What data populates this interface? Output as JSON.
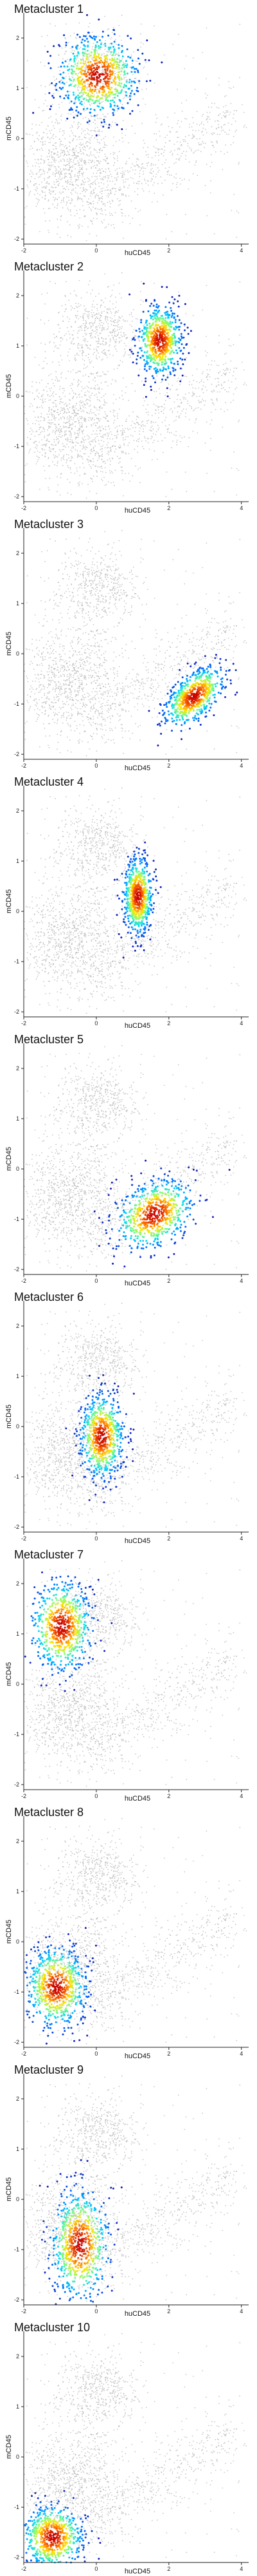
{
  "figure": {
    "panel_count": 10
  },
  "chart_data": [
    {
      "type": "scatter",
      "title": "Metacluster 1",
      "xlabel": "huCD45",
      "ylabel": "mCD45",
      "xlim": [
        -2,
        4.2
      ],
      "ylim": [
        -2.1,
        2.5
      ],
      "xticks": [
        -2,
        0,
        2,
        4
      ],
      "yticks": [
        -2,
        -1,
        0,
        1,
        2
      ],
      "grid": false,
      "legend": "none",
      "background_color": "#b5b5b5",
      "highlight_colormap": [
        "#1a1ab0",
        "#0070ff",
        "#00d4ff",
        "#7cff79",
        "#ffe600",
        "#ff7000",
        "#c80000"
      ],
      "highlight_region": {
        "center_x": 0.05,
        "center_y": 1.25,
        "spread_x": 0.55,
        "spread_y": 0.4,
        "rotation_deg": 0
      }
    },
    {
      "type": "scatter",
      "title": "Metacluster 2",
      "xlabel": "huCD45",
      "ylabel": "mCD45",
      "xlim": [
        -2,
        4.2
      ],
      "ylim": [
        -2.1,
        2.5
      ],
      "xticks": [
        -2,
        0,
        2,
        4
      ],
      "yticks": [
        -2,
        -1,
        0,
        1,
        2
      ],
      "grid": false,
      "legend": "none",
      "background_color": "#b5b5b5",
      "highlight_colormap": [
        "#1a1ab0",
        "#0070ff",
        "#00d4ff",
        "#7cff79",
        "#ffe600",
        "#ff7000",
        "#c80000"
      ],
      "highlight_region": {
        "center_x": 1.75,
        "center_y": 1.1,
        "spread_x": 0.3,
        "spread_y": 0.35,
        "rotation_deg": 0
      }
    },
    {
      "type": "scatter",
      "title": "Metacluster 3",
      "xlabel": "huCD45",
      "ylabel": "mCD45",
      "xlim": [
        -2,
        4.2
      ],
      "ylim": [
        -2.1,
        2.5
      ],
      "xticks": [
        -2,
        0,
        2,
        4
      ],
      "yticks": [
        -2,
        -1,
        0,
        1,
        2
      ],
      "grid": false,
      "legend": "none",
      "background_color": "#b5b5b5",
      "highlight_colormap": [
        "#1a1ab0",
        "#0070ff",
        "#00d4ff",
        "#7cff79",
        "#ffe600",
        "#ff7000",
        "#c80000"
      ],
      "highlight_region": {
        "center_x": 2.7,
        "center_y": -0.85,
        "spread_x": 0.45,
        "spread_y": 0.22,
        "rotation_deg": 30
      }
    },
    {
      "type": "scatter",
      "title": "Metacluster 4",
      "xlabel": "huCD45",
      "ylabel": "mCD45",
      "xlim": [
        -2,
        4.2
      ],
      "ylim": [
        -2.1,
        2.5
      ],
      "xticks": [
        -2,
        0,
        2,
        4
      ],
      "yticks": [
        -2,
        -1,
        0,
        1,
        2
      ],
      "grid": false,
      "legend": "none",
      "background_color": "#b5b5b5",
      "highlight_colormap": [
        "#1a1ab0",
        "#0070ff",
        "#00d4ff",
        "#7cff79",
        "#ffe600",
        "#ff7000",
        "#c80000"
      ],
      "highlight_region": {
        "center_x": 1.15,
        "center_y": 0.3,
        "spread_x": 0.2,
        "spread_y": 0.38,
        "rotation_deg": 0
      }
    },
    {
      "type": "scatter",
      "title": "Metacluster 5",
      "xlabel": "huCD45",
      "ylabel": "mCD45",
      "xlim": [
        -2,
        4.2
      ],
      "ylim": [
        -2.1,
        2.5
      ],
      "xticks": [
        -2,
        0,
        2,
        4
      ],
      "yticks": [
        -2,
        -1,
        0,
        1,
        2
      ],
      "grid": false,
      "legend": "none",
      "background_color": "#b5b5b5",
      "highlight_colormap": [
        "#1a1ab0",
        "#0070ff",
        "#00d4ff",
        "#7cff79",
        "#ffe600",
        "#ff7000",
        "#c80000"
      ],
      "highlight_region": {
        "center_x": 1.6,
        "center_y": -0.9,
        "spread_x": 0.55,
        "spread_y": 0.32,
        "rotation_deg": 18
      }
    },
    {
      "type": "scatter",
      "title": "Metacluster 6",
      "xlabel": "huCD45",
      "ylabel": "mCD45",
      "xlim": [
        -2,
        4.2
      ],
      "ylim": [
        -2.1,
        2.5
      ],
      "xticks": [
        -2,
        0,
        2,
        4
      ],
      "yticks": [
        -2,
        -1,
        0,
        1,
        2
      ],
      "grid": false,
      "legend": "none",
      "background_color": "#b5b5b5",
      "highlight_colormap": [
        "#1a1ab0",
        "#0070ff",
        "#00d4ff",
        "#7cff79",
        "#ffe600",
        "#ff7000",
        "#c80000"
      ],
      "highlight_region": {
        "center_x": 0.15,
        "center_y": -0.2,
        "spread_x": 0.3,
        "spread_y": 0.42,
        "rotation_deg": 0
      }
    },
    {
      "type": "scatter",
      "title": "Metacluster 7",
      "xlabel": "huCD45",
      "ylabel": "mCD45",
      "xlim": [
        -2,
        4.2
      ],
      "ylim": [
        -2.1,
        2.5
      ],
      "xticks": [
        -2,
        0,
        2,
        4
      ],
      "yticks": [
        -2,
        -1,
        0,
        1,
        2
      ],
      "grid": false,
      "legend": "none",
      "background_color": "#b5b5b5",
      "highlight_colormap": [
        "#1a1ab0",
        "#0070ff",
        "#00d4ff",
        "#7cff79",
        "#ffe600",
        "#ff7000",
        "#c80000"
      ],
      "highlight_region": {
        "center_x": -0.95,
        "center_y": 1.15,
        "spread_x": 0.42,
        "spread_y": 0.45,
        "rotation_deg": 0
      }
    },
    {
      "type": "scatter",
      "title": "Metacluster 8",
      "xlabel": "huCD45",
      "ylabel": "mCD45",
      "xlim": [
        -2,
        4.2
      ],
      "ylim": [
        -2.1,
        2.5
      ],
      "xticks": [
        -2,
        0,
        2,
        4
      ],
      "yticks": [
        -2,
        -1,
        0,
        1,
        2
      ],
      "grid": false,
      "legend": "none",
      "background_color": "#b5b5b5",
      "highlight_colormap": [
        "#1a1ab0",
        "#0070ff",
        "#00d4ff",
        "#7cff79",
        "#ffe600",
        "#ff7000",
        "#c80000"
      ],
      "highlight_region": {
        "center_x": -1.1,
        "center_y": -0.9,
        "spread_x": 0.42,
        "spread_y": 0.4,
        "rotation_deg": 0
      }
    },
    {
      "type": "scatter",
      "title": "Metacluster 9",
      "xlabel": "huCD45",
      "ylabel": "mCD45",
      "xlim": [
        -2,
        4.2
      ],
      "ylim": [
        -2.1,
        2.5
      ],
      "xticks": [
        -2,
        0,
        2,
        4
      ],
      "yticks": [
        -2,
        -1,
        0,
        1,
        2
      ],
      "grid": false,
      "legend": "none",
      "background_color": "#b5b5b5",
      "highlight_colormap": [
        "#1a1ab0",
        "#0070ff",
        "#00d4ff",
        "#7cff79",
        "#ffe600",
        "#ff7000",
        "#c80000"
      ],
      "highlight_region": {
        "center_x": -0.45,
        "center_y": -0.9,
        "spread_x": 0.4,
        "spread_y": 0.55,
        "rotation_deg": 0
      }
    },
    {
      "type": "scatter",
      "title": "Metacluster 10",
      "xlabel": "huCD45",
      "ylabel": "mCD45",
      "xlim": [
        -2,
        4.2
      ],
      "ylim": [
        -2.1,
        2.5
      ],
      "xticks": [
        -2,
        0,
        2,
        4
      ],
      "yticks": [
        -2,
        -1,
        0,
        1,
        2
      ],
      "grid": false,
      "legend": "none",
      "background_color": "#b5b5b5",
      "highlight_colormap": [
        "#1a1ab0",
        "#0070ff",
        "#00d4ff",
        "#7cff79",
        "#ffe600",
        "#ff7000",
        "#c80000"
      ],
      "highlight_region": {
        "center_x": -1.2,
        "center_y": -1.6,
        "spread_x": 0.42,
        "spread_y": 0.32,
        "rotation_deg": 0
      }
    }
  ]
}
